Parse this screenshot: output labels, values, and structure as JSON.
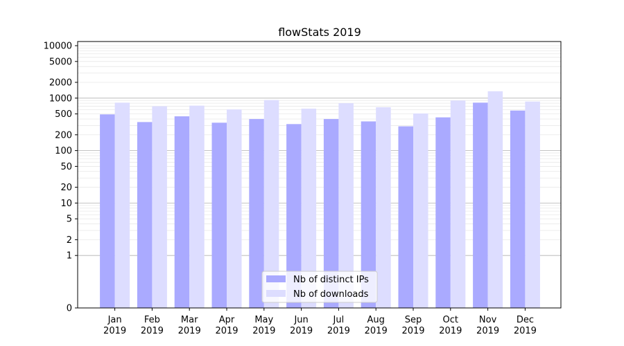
{
  "chart_data": {
    "type": "bar",
    "title": "flowStats 2019",
    "xlabel": "",
    "ylabel": "",
    "yscale": "symlog",
    "ylim": [
      0,
      12000
    ],
    "categories": [
      "Jan\n2019",
      "Feb\n2019",
      "Mar\n2019",
      "Apr\n2019",
      "May\n2019",
      "Jun\n2019",
      "Jul\n2019",
      "Aug\n2019",
      "Sep\n2019",
      "Oct\n2019",
      "Nov\n2019",
      "Dec\n2019"
    ],
    "yticks": [
      0,
      1,
      2,
      5,
      10,
      20,
      50,
      100,
      200,
      500,
      1000,
      2000,
      5000,
      10000
    ],
    "ytick_labels": [
      "0",
      "1",
      "2",
      "5",
      "10",
      "20",
      "50",
      "100",
      "200",
      "500",
      "1000",
      "2000",
      "5000",
      "10000"
    ],
    "major_grid": [
      1,
      10,
      100,
      1000
    ],
    "grid": true,
    "legend_position": "bottom-center",
    "series": [
      {
        "name": "Nb of distinct IPs",
        "color": "#aaaaff",
        "values": [
          490,
          350,
          450,
          340,
          400,
          320,
          400,
          360,
          290,
          430,
          820,
          580
        ]
      },
      {
        "name": "Nb of downloads",
        "color": "#ddddff",
        "values": [
          820,
          700,
          720,
          610,
          920,
          630,
          800,
          670,
          510,
          900,
          1350,
          860
        ]
      }
    ]
  }
}
